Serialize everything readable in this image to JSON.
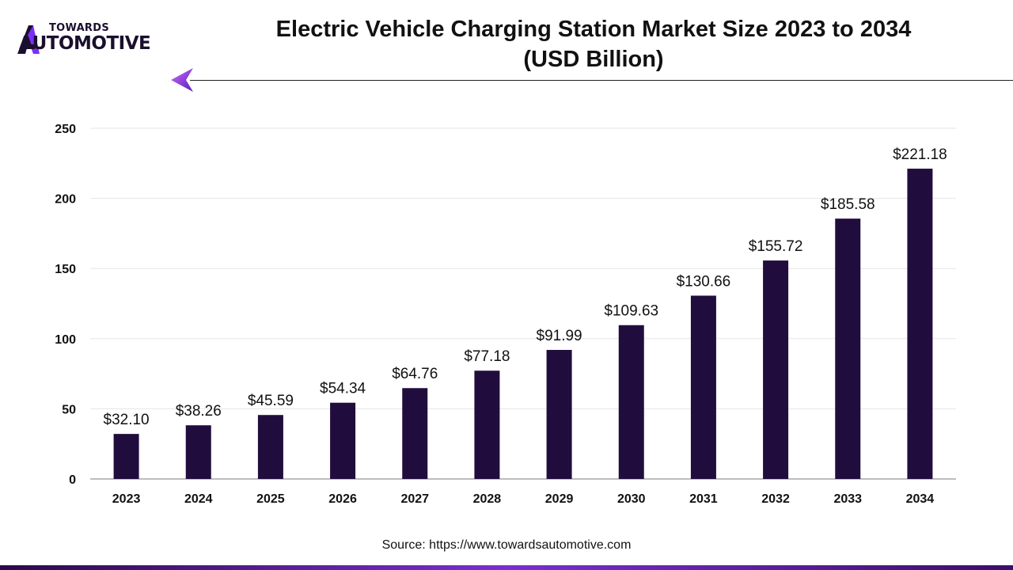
{
  "brand": {
    "line1": "TOWARDS",
    "line2": "AUTOMOTIVE",
    "logo_colors": [
      "#1a0f2e",
      "#7b2ff7",
      "#c86bff"
    ]
  },
  "header": {
    "title_line1": "Electric Vehicle Charging Station Market Size 2023 to 2034",
    "title_line2": "(USD Billion)"
  },
  "footer": {
    "source": "Source: https://www.towardsautomotive.com"
  },
  "colors": {
    "bar": "#210d3d",
    "grid": "#e6e6e6",
    "baseline": "#bdbdbd",
    "accent": "#7b2ff7"
  },
  "chart_data": {
    "type": "bar",
    "title": "Electric Vehicle Charging Station Market Size 2023 to 2034 (USD Billion)",
    "xlabel": "",
    "ylabel": "",
    "ylim": [
      0,
      250
    ],
    "yticks": [
      0,
      50,
      100,
      150,
      200,
      250
    ],
    "grid": true,
    "categories": [
      "2023",
      "2024",
      "2025",
      "2026",
      "2027",
      "2028",
      "2029",
      "2030",
      "2031",
      "2032",
      "2033",
      "2034"
    ],
    "values": [
      32.1,
      38.26,
      45.59,
      54.34,
      64.76,
      77.18,
      91.99,
      109.63,
      130.66,
      155.72,
      185.58,
      221.18
    ],
    "data_labels": [
      "$32.10",
      "$38.26",
      "$45.59",
      "$54.34",
      "$64.76",
      "$77.18",
      "$91.99",
      "$109.63",
      "$130.66",
      "$155.72",
      "$185.58",
      "$221.18"
    ]
  }
}
